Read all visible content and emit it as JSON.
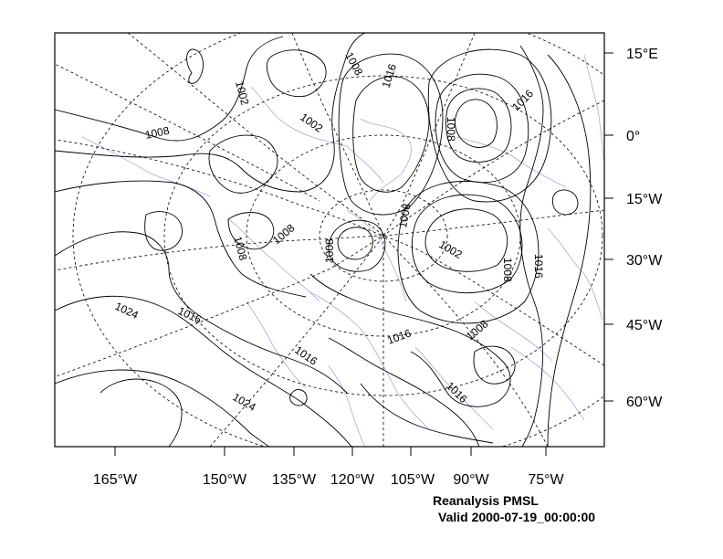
{
  "map": {
    "lon_ticks": [
      "165°W",
      "150°W",
      "135°W",
      "120°W",
      "105°W",
      "90°W",
      "75°W"
    ],
    "lat_ticks": [
      "15°E",
      "0°",
      "15°W",
      "30°W",
      "45°W",
      "60°W"
    ],
    "contour_labels": [
      "1008",
      "1002",
      "1008",
      "1016",
      "1002",
      "1016",
      "1008",
      "1008",
      "1008",
      "1008",
      "1008",
      "1002",
      "1008",
      "1016",
      "1024",
      "1016",
      "1016",
      "1016",
      "1008",
      "1016",
      "1024"
    ],
    "caption": {
      "line1": "Reanalysis PMSL",
      "line2": "Valid 2000-07-19_00:00:00"
    },
    "colors": {
      "contour": "#000000",
      "coastline": "#b9a3d8",
      "graticule": "#000000"
    }
  }
}
